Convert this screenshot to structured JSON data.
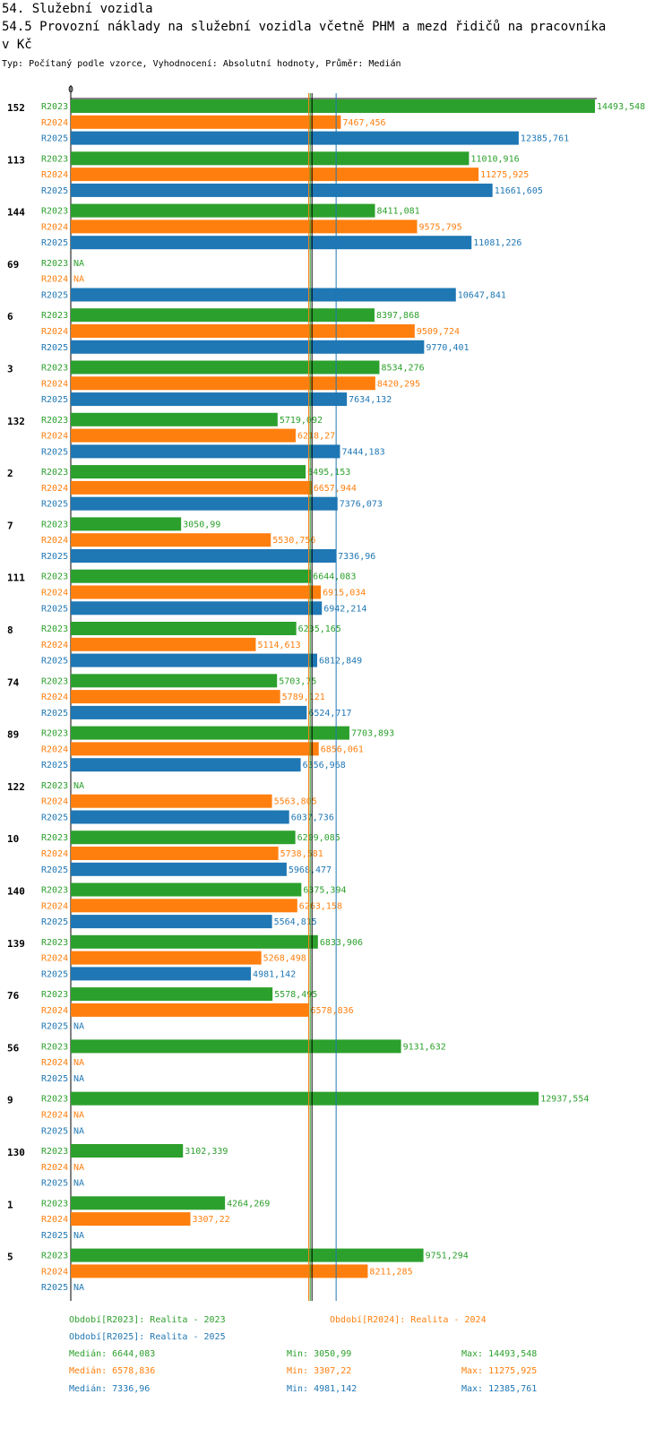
{
  "header": {
    "section": "54. Služební vozidla",
    "title_line1": "54.5 Provozní náklady na služební vozidla včetně PHM a mezd řidičů na pracovníka",
    "title_line2": "v Kč",
    "subtitle": "Typ: Počítaný podle vzorce, Vyhodnocení: Absolutní hodnoty, Průměr: Medián"
  },
  "chart_data": {
    "type": "bar",
    "orientation": "horizontal",
    "axis_zero_label": "0",
    "xlim": [
      0,
      14493.548
    ],
    "colors": {
      "R2023": "#2ca02c",
      "R2024": "#ff7f0e",
      "R2025": "#1f77b4"
    },
    "series_names": [
      "R2023",
      "R2024",
      "R2025"
    ],
    "na_label": "NA",
    "categories": [
      "152",
      "113",
      "144",
      "69",
      "6",
      "3",
      "132",
      "2",
      "7",
      "111",
      "8",
      "74",
      "89",
      "122",
      "10",
      "140",
      "139",
      "76",
      "56",
      "9",
      "130",
      "1",
      "5"
    ],
    "series": [
      {
        "name": "R2023",
        "values": [
          14493.548,
          11010.916,
          8411.081,
          null,
          8397.868,
          8534.276,
          5719.092,
          6495.153,
          3050.99,
          6644.083,
          6235.165,
          5703.75,
          7703.893,
          null,
          6209.085,
          6375.394,
          6833.906,
          5578.495,
          9131.632,
          12937.554,
          3102.339,
          4264.269,
          9751.294
        ],
        "labels": [
          "14493,548",
          "11010,916",
          "8411,081",
          "NA",
          "8397,868",
          "8534,276",
          "5719,092",
          "6495,153",
          "3050,99",
          "6644,083",
          "6235,165",
          "5703,75",
          "7703,893",
          "NA",
          "6209,085",
          "6375,394",
          "6833,906",
          "5578,495",
          "9131,632",
          "12937,554",
          "3102,339",
          "4264,269",
          "9751,294"
        ]
      },
      {
        "name": "R2024",
        "values": [
          7467.456,
          11275.925,
          9575.795,
          null,
          9509.724,
          8420.295,
          6218.27,
          6657.944,
          5530.756,
          6915.034,
          5114.613,
          5789.121,
          6856.061,
          5563.805,
          5738.581,
          6263.158,
          5268.498,
          6578.836,
          null,
          null,
          null,
          3307.22,
          8211.285
        ],
        "labels": [
          "7467,456",
          "11275,925",
          "9575,795",
          "NA",
          "9509,724",
          "8420,295",
          "6218,27",
          "6657,944",
          "5530,756",
          "6915,034",
          "5114,613",
          "5789,121",
          "6856,061",
          "5563,805",
          "5738,581",
          "6263,158",
          "5268,498",
          "6578,836",
          "NA",
          "NA",
          "NA",
          "3307,22",
          "8211,285"
        ]
      },
      {
        "name": "R2025",
        "values": [
          12385.761,
          11661.605,
          11081.226,
          10647.841,
          9770.401,
          7634.132,
          7444.183,
          7376.073,
          7336.96,
          6942.214,
          6812.849,
          6524.717,
          6356.968,
          6037.736,
          5968.477,
          5564.815,
          4981.142,
          null,
          null,
          null,
          null,
          null,
          null
        ],
        "labels": [
          "12385,761",
          "11661,605",
          "11081,226",
          "10647,841",
          "9770,401",
          "7634,132",
          "7444,183",
          "7376,073",
          "7336,96",
          "6942,214",
          "6812,849",
          "6524,717",
          "6356,968",
          "6037,736",
          "5968,477",
          "5564,815",
          "4981,142",
          "NA",
          "NA",
          "NA",
          "NA",
          "NA",
          "NA"
        ]
      }
    ],
    "medians": {
      "R2023": 6644.083,
      "R2024": 6578.836,
      "R2025": 7336.96
    },
    "legend": {
      "R2023": "Období[R2023]: Realita - 2023",
      "R2024": "Období[R2024]: Realita - 2024",
      "R2025": "Období[R2025]: Realita - 2025"
    },
    "stats": [
      {
        "series": "R2023",
        "median": "Medián: 6644,083",
        "min": "Min: 3050,99",
        "max": "Max: 14493,548"
      },
      {
        "series": "R2024",
        "median": "Medián: 6578,836",
        "min": "Min: 3307,22",
        "max": "Max: 11275,925"
      },
      {
        "series": "R2025",
        "median": "Medián: 7336,96",
        "min": "Min: 4981,142",
        "max": "Max: 12385,761"
      }
    ]
  }
}
